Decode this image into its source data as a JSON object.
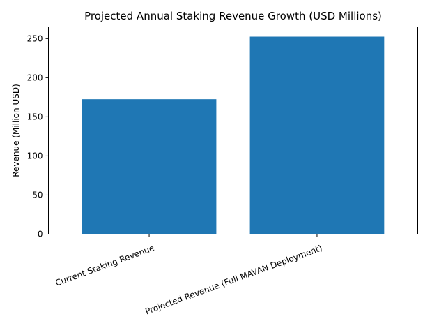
{
  "chart_data": {
    "type": "bar",
    "title": "Projected Annual Staking Revenue Growth (USD Millions)",
    "xlabel": "",
    "ylabel": "Revenue (Million USD)",
    "categories": [
      "Current Staking Revenue",
      "Projected Revenue (Full MAVAN Deployment)"
    ],
    "values": [
      172.5,
      252.5
    ],
    "ylim": [
      0,
      265
    ],
    "yticks": [
      0,
      50,
      100,
      150,
      200,
      250
    ],
    "bar_color": "#1f77b4",
    "grid": false,
    "legend": "none"
  }
}
